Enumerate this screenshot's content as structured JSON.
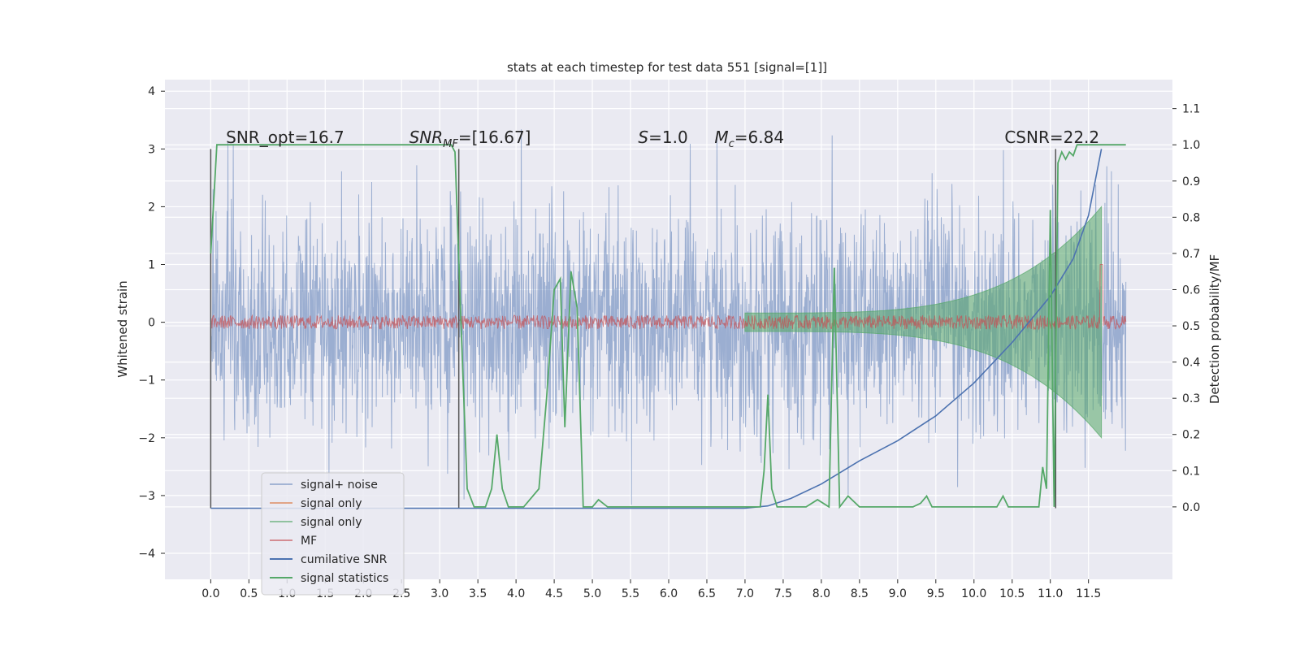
{
  "chart_data": {
    "type": "line",
    "title": "stats at each timestep for test data 551 [signal=[1]]",
    "xlabel": "",
    "ylabel": "Whitened strain",
    "ylabel_right": "Detection probability/MF",
    "xlim": [
      -0.6,
      12.6
    ],
    "ylim": [
      -4.45,
      4.2
    ],
    "ylim_right": [
      -0.2,
      1.18
    ],
    "x_ticks": [
      0.0,
      0.5,
      1.0,
      1.5,
      2.0,
      2.5,
      3.0,
      3.5,
      4.0,
      4.5,
      5.0,
      5.5,
      6.0,
      6.5,
      7.0,
      7.5,
      8.0,
      8.5,
      9.0,
      9.5,
      10.0,
      10.5,
      11.0,
      11.5
    ],
    "x_tick_labels": [
      "0.0",
      "0.5",
      "1.0",
      "1.5",
      "2.0",
      "2.5",
      "3.0",
      "3.5",
      "4.0",
      "4.5",
      "5.0",
      "5.5",
      "6.0",
      "6.5",
      "7.0",
      "7.5",
      "8.0",
      "8.5",
      "9.0",
      "9.5",
      "10.0",
      "10.5",
      "11.0",
      "11.5"
    ],
    "y_ticks": [
      -4,
      -3,
      -2,
      -1,
      0,
      1,
      2,
      3,
      4
    ],
    "y_tick_labels": [
      "−4",
      "−3",
      "−2",
      "−1",
      "0",
      "1",
      "2",
      "3",
      "4"
    ],
    "y_ticks_right": [
      0.0,
      0.1,
      0.2,
      0.3,
      0.4,
      0.5,
      0.6,
      0.7,
      0.8,
      0.9,
      1.0,
      1.1
    ],
    "y_tick_labels_right": [
      "0.0",
      "0.1",
      "0.2",
      "0.3",
      "0.4",
      "0.5",
      "0.6",
      "0.7",
      "0.8",
      "0.9",
      "1.0",
      "1.1"
    ],
    "grid": true,
    "background": "#eaeaf2",
    "legend_position": "lower-left",
    "annotations": [
      {
        "text": "SNR_opt=16.7",
        "x": 0.2,
        "y": 3.1
      },
      {
        "text": "SNR_MF=[16.67]",
        "x": 2.6,
        "y": 3.1,
        "math": "subscript"
      },
      {
        "text": "S=1.0",
        "x": 5.6,
        "y": 3.1,
        "math": "italic"
      },
      {
        "text": "M_c=6.84",
        "x": 6.6,
        "y": 3.1,
        "math": "subscript"
      },
      {
        "text": "CSNR=22.2",
        "x": 10.4,
        "y": 3.1
      }
    ],
    "vlines": [
      {
        "x": 0.0,
        "y_range": [
          -3.22,
          3.0
        ],
        "color": "#555555"
      },
      {
        "x": 3.25,
        "y_range": [
          -3.22,
          3.0
        ],
        "color": "#555555"
      },
      {
        "x": 11.07,
        "y_range": [
          -3.22,
          3.0
        ],
        "color": "#555555"
      }
    ],
    "series": [
      {
        "name": "signal+ noise",
        "axis": "left",
        "color": "#4c72b0",
        "kind": "noise",
        "x_range": [
          0.0,
          11.99
        ],
        "amplitude_std": 0.95
      },
      {
        "name": "signal only",
        "axis": "left",
        "color": "#dd8452",
        "kind": "chirp",
        "x_range": [
          7.0,
          11.67
        ],
        "peak_amplitude": 2.0
      },
      {
        "name": "signal only",
        "axis": "left",
        "color": "#55a868",
        "kind": "chirp-fill",
        "x_range": [
          7.0,
          11.67
        ],
        "peak_amplitude": 2.0
      },
      {
        "name": "MF",
        "axis": "left",
        "color": "#c44e52",
        "kind": "mf-band",
        "x_range": [
          0.0,
          11.99
        ],
        "band_amplitude": 0.12,
        "spike_x": 11.67,
        "spike_y": 1.0
      },
      {
        "name": "cumilative SNR",
        "axis": "left",
        "color": "#4c72b0",
        "x": [
          0.0,
          7.0,
          7.3,
          7.6,
          8.0,
          8.5,
          9.0,
          9.5,
          10.0,
          10.5,
          11.0,
          11.3,
          11.5,
          11.67
        ],
        "y": [
          -3.22,
          -3.22,
          -3.18,
          -3.05,
          -2.8,
          -2.4,
          -2.05,
          -1.62,
          -1.05,
          -0.35,
          0.45,
          1.1,
          1.85,
          3.0
        ]
      },
      {
        "name": "signal statistics",
        "axis": "right",
        "color": "#55a868",
        "x": [
          0.0,
          0.08,
          0.16,
          3.15,
          3.2,
          3.28,
          3.36,
          3.45,
          3.6,
          3.68,
          3.75,
          3.82,
          3.9,
          4.1,
          4.3,
          4.4,
          4.5,
          4.58,
          4.64,
          4.72,
          4.8,
          4.88,
          5.0,
          5.08,
          5.2,
          7.0,
          7.2,
          7.25,
          7.3,
          7.35,
          7.42,
          7.5,
          7.8,
          7.95,
          8.1,
          8.17,
          8.24,
          8.35,
          8.5,
          9.0,
          9.2,
          9.3,
          9.38,
          9.45,
          9.6,
          10.3,
          10.38,
          10.45,
          10.55,
          10.85,
          10.9,
          10.95,
          11.0,
          11.05,
          11.1,
          11.15,
          11.2,
          11.25,
          11.3,
          11.35,
          11.4,
          11.5,
          11.67,
          11.99
        ],
        "y": [
          0.7,
          1.0,
          1.0,
          1.0,
          0.98,
          0.5,
          0.05,
          0.0,
          0.0,
          0.05,
          0.2,
          0.05,
          0.0,
          0.0,
          0.05,
          0.3,
          0.6,
          0.63,
          0.22,
          0.65,
          0.55,
          0.0,
          0.0,
          0.02,
          0.0,
          0.0,
          0.0,
          0.1,
          0.31,
          0.05,
          0.0,
          0.0,
          0.0,
          0.02,
          0.0,
          0.66,
          0.0,
          0.03,
          0.0,
          0.0,
          0.0,
          0.01,
          0.03,
          0.0,
          0.0,
          0.0,
          0.03,
          0.0,
          0.0,
          0.0,
          0.11,
          0.05,
          0.82,
          0.0,
          0.95,
          0.98,
          0.96,
          0.98,
          0.97,
          1.0,
          1.0,
          1.0,
          1.0,
          1.0
        ]
      }
    ],
    "legend": [
      "signal+ noise",
      "signal only",
      "signal only",
      "MF",
      "cumilative SNR",
      "signal statistics"
    ]
  }
}
